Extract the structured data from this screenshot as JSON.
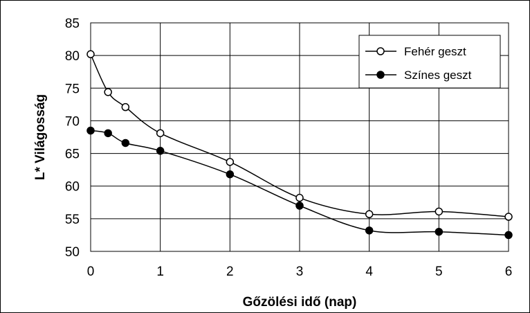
{
  "chart_data": {
    "type": "line",
    "title": "",
    "xlabel": "Gőzölési idő (nap)",
    "ylabel": "L* Világosság",
    "xlim": [
      0,
      6
    ],
    "ylim": [
      50,
      85
    ],
    "x_ticks": [
      0,
      1,
      2,
      3,
      4,
      5,
      6
    ],
    "y_ticks": [
      50,
      55,
      60,
      65,
      70,
      75,
      80,
      85
    ],
    "grid": true,
    "legend_position": "top-right",
    "series": [
      {
        "name": "Fehér geszt",
        "marker": "open-circle",
        "color": "#000000",
        "x": [
          0,
          0.25,
          0.5,
          1,
          2,
          3,
          4,
          5,
          6
        ],
        "y": [
          80.2,
          74.4,
          72.1,
          68.1,
          63.7,
          58.2,
          55.7,
          56.1,
          55.3
        ]
      },
      {
        "name": "Színes geszt",
        "marker": "filled-circle",
        "color": "#000000",
        "x": [
          0,
          0.25,
          0.5,
          1,
          2,
          3,
          4,
          5,
          6
        ],
        "y": [
          68.5,
          68.1,
          66.6,
          65.4,
          61.8,
          57.0,
          53.2,
          53.0,
          52.5
        ]
      }
    ]
  }
}
